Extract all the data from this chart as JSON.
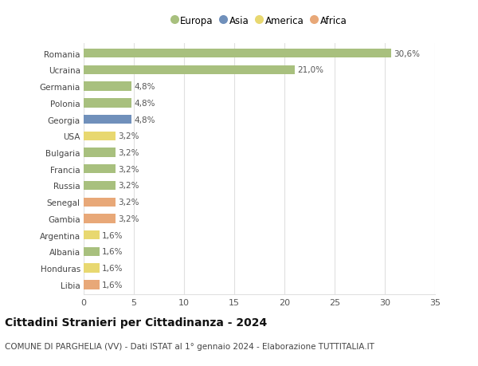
{
  "countries": [
    "Romania",
    "Ucraina",
    "Germania",
    "Polonia",
    "Georgia",
    "USA",
    "Bulgaria",
    "Francia",
    "Russia",
    "Senegal",
    "Gambia",
    "Argentina",
    "Albania",
    "Honduras",
    "Libia"
  ],
  "values": [
    30.6,
    21.0,
    4.8,
    4.8,
    4.8,
    3.2,
    3.2,
    3.2,
    3.2,
    3.2,
    3.2,
    1.6,
    1.6,
    1.6,
    1.6
  ],
  "labels": [
    "30,6%",
    "21,0%",
    "4,8%",
    "4,8%",
    "4,8%",
    "3,2%",
    "3,2%",
    "3,2%",
    "3,2%",
    "3,2%",
    "3,2%",
    "1,6%",
    "1,6%",
    "1,6%",
    "1,6%"
  ],
  "bar_colors": [
    "#a8c07e",
    "#a8c07e",
    "#a8c07e",
    "#a8c07e",
    "#7090bb",
    "#e8d870",
    "#a8c07e",
    "#a8c07e",
    "#a8c07e",
    "#e8a878",
    "#e8a878",
    "#e8d870",
    "#a8c07e",
    "#e8d870",
    "#e8a878"
  ],
  "legend": [
    {
      "label": "Europa",
      "color": "#a8c07e"
    },
    {
      "label": "Asia",
      "color": "#7090bb"
    },
    {
      "label": "America",
      "color": "#e8d870"
    },
    {
      "label": "Africa",
      "color": "#e8a878"
    }
  ],
  "xlim": [
    0,
    35
  ],
  "xticks": [
    0,
    5,
    10,
    15,
    20,
    25,
    30,
    35
  ],
  "title": "Cittadini Stranieri per Cittadinanza - 2024",
  "subtitle": "COMUNE DI PARGHELIA (VV) - Dati ISTAT al 1° gennaio 2024 - Elaborazione TUTTITALIA.IT",
  "background_color": "#ffffff",
  "grid_color": "#e0e0e0",
  "bar_height": 0.55,
  "label_fontsize": 7.5,
  "ytick_fontsize": 7.5,
  "xtick_fontsize": 8.0,
  "title_fontsize": 10.0,
  "subtitle_fontsize": 7.5
}
